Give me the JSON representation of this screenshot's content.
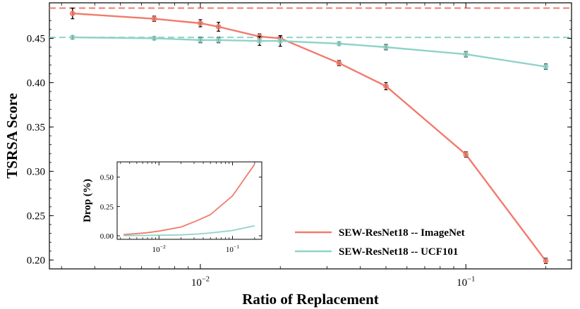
{
  "chart_data": [
    {
      "type": "line",
      "title": "",
      "xlabel": "Ratio of Replacement",
      "ylabel": "TSRSA Score",
      "xscale": "log",
      "xlim": [
        0.0027,
        0.25
      ],
      "ylim": [
        0.19,
        0.49
      ],
      "yticks": [
        "0.20",
        "0.25",
        "0.30",
        "0.35",
        "0.40",
        "0.45"
      ],
      "xticks": [
        {
          "value": 0.01,
          "base": "10",
          "exp": "−2"
        },
        {
          "value": 0.1,
          "base": "10",
          "exp": "−1"
        }
      ],
      "legend_position": "lower-right",
      "series": [
        {
          "name": "SEW-ResNet18  --  ImageNet",
          "color": "#f17b6b",
          "x": [
            0.0033,
            0.0067,
            0.01,
            0.0117,
            0.0167,
            0.02,
            0.0333,
            0.05,
            0.1,
            0.2
          ],
          "y": [
            0.478,
            0.472,
            0.467,
            0.463,
            0.452,
            0.45,
            0.422,
            0.396,
            0.319,
            0.199
          ],
          "err": [
            0.006,
            0.003,
            0.004,
            0.005,
            0.003,
            0.003,
            0.003,
            0.004,
            0.003,
            0.003
          ]
        },
        {
          "name": "SEW-ResNet18  --  UCF101",
          "color": "#8fd3c8",
          "x": [
            0.0033,
            0.0067,
            0.01,
            0.0117,
            0.0167,
            0.02,
            0.0333,
            0.05,
            0.1,
            0.2
          ],
          "y": [
            0.451,
            0.45,
            0.448,
            0.448,
            0.447,
            0.447,
            0.444,
            0.44,
            0.432,
            0.418
          ],
          "err": [
            0.002,
            0.002,
            0.003,
            0.003,
            0.005,
            0.006,
            0.002,
            0.003,
            0.003,
            0.003
          ]
        }
      ],
      "reference_lines": [
        {
          "series": "SEW-ResNet18  --  ImageNet",
          "y": 0.484,
          "color": "#f17b6b",
          "style": "dashed"
        },
        {
          "series": "SEW-ResNet18  --  UCF101",
          "y": 0.451,
          "color": "#8fd3c8",
          "style": "dashed"
        }
      ]
    },
    {
      "type": "line",
      "title": "",
      "xlabel": "",
      "ylabel": "Drop (%)",
      "xscale": "log",
      "xlim": [
        0.0027,
        0.25
      ],
      "ylim": [
        -0.03,
        0.63
      ],
      "yticks": [
        "0.00",
        "0.25",
        "0.50"
      ],
      "xticks": [
        {
          "value": 0.01,
          "base": "10",
          "exp": "−2"
        },
        {
          "value": 0.1,
          "base": "10",
          "exp": "−1"
        }
      ],
      "series": [
        {
          "color": "#f17b6b",
          "x": [
            0.0033,
            0.0067,
            0.01,
            0.02,
            0.0333,
            0.05,
            0.1,
            0.2
          ],
          "y": [
            0.01,
            0.025,
            0.04,
            0.075,
            0.13,
            0.18,
            0.34,
            0.61
          ]
        },
        {
          "color": "#8fd3c8",
          "x": [
            0.0033,
            0.0067,
            0.01,
            0.02,
            0.0333,
            0.05,
            0.1,
            0.2
          ],
          "y": [
            0.002,
            0.003,
            0.005,
            0.008,
            0.015,
            0.024,
            0.045,
            0.085
          ]
        }
      ]
    }
  ]
}
